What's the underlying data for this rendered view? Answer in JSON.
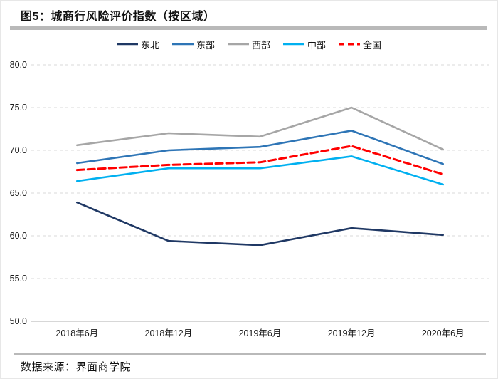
{
  "title": "图5：城商行风险评价指数（按区域）",
  "source": "数据来源：界面商学院",
  "chart_data": {
    "type": "line",
    "title": "图5：城商行风险评价指数（按区域）",
    "categories": [
      "2018年6月",
      "2018年12月",
      "2019年6月",
      "2019年12月",
      "2020年6月"
    ],
    "series": [
      {
        "name": "东北",
        "color": "#1f3864",
        "style": "solid",
        "values": [
          63.9,
          59.4,
          58.9,
          60.9,
          60.1
        ]
      },
      {
        "name": "东部",
        "color": "#2e75b6",
        "style": "solid",
        "values": [
          68.5,
          70.0,
          70.4,
          72.3,
          68.4
        ]
      },
      {
        "name": "西部",
        "color": "#a6a6a6",
        "style": "solid",
        "values": [
          70.6,
          72.0,
          71.6,
          75.0,
          70.1
        ]
      },
      {
        "name": "中部",
        "color": "#00b0f0",
        "style": "solid",
        "values": [
          66.4,
          67.9,
          67.9,
          69.3,
          66.0
        ]
      },
      {
        "name": "全国",
        "color": "#ff0000",
        "style": "dashed",
        "values": [
          67.7,
          68.3,
          68.6,
          70.5,
          67.2
        ]
      }
    ],
    "xlabel": "",
    "ylabel": "",
    "ylim": [
      50,
      80
    ],
    "ytick_step": 5,
    "ytick_labels": [
      "50.0",
      "55.0",
      "60.0",
      "65.0",
      "70.0",
      "75.0",
      "80.0"
    ],
    "grid": true,
    "gridline_color": "#d9d9d9",
    "axis_line_color": "#bfbfbf",
    "legend_position": "top"
  }
}
